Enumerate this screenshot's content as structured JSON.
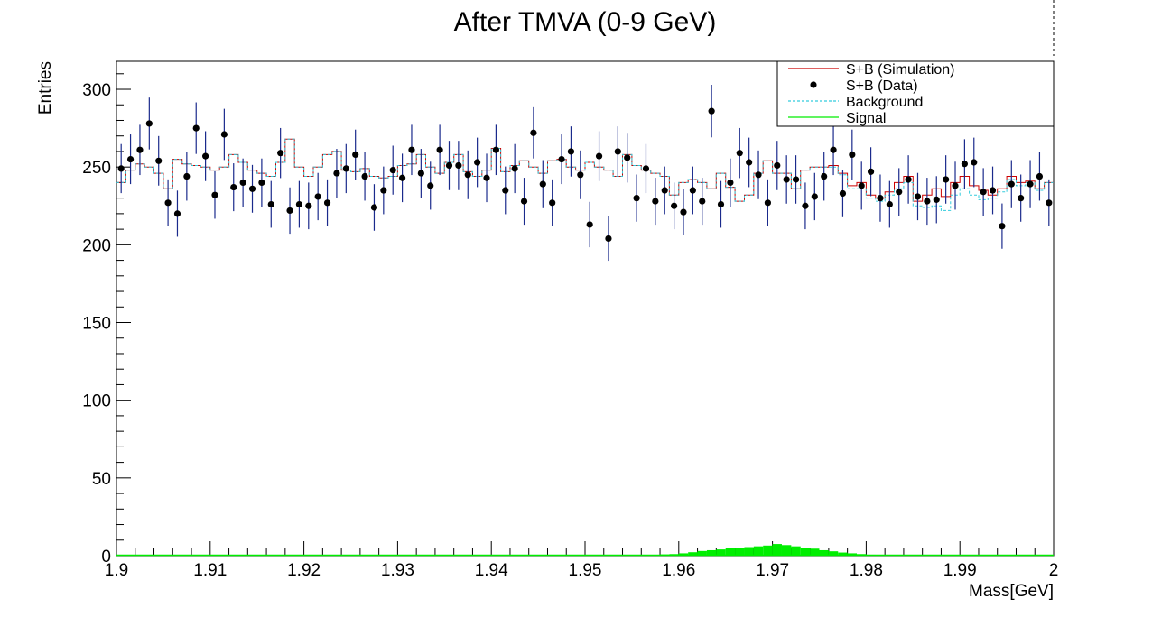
{
  "chart_data": {
    "type": "histogram",
    "title": "After TMVA (0-9 GeV)",
    "xlabel": "Mass[GeV]",
    "ylabel": "Entries",
    "xlim": [
      1.9,
      2.0
    ],
    "ylim": [
      0,
      318
    ],
    "bin_width": 0.001,
    "x_tick_labels": [
      "1.9",
      "1.91",
      "1.92",
      "1.93",
      "1.94",
      "1.95",
      "1.96",
      "1.97",
      "1.98",
      "1.99",
      "2"
    ],
    "y_tick_labels": [
      "0",
      "50",
      "100",
      "150",
      "200",
      "250",
      "300"
    ],
    "legend_position": "top-right",
    "series": [
      {
        "name": "S+B (Simulation)",
        "kind": "step",
        "color": "#cc0000",
        "values": [
          240,
          248,
          252,
          250,
          246,
          236,
          255,
          252,
          251,
          250,
          248,
          250,
          258,
          253,
          248,
          246,
          244,
          253,
          268,
          250,
          244,
          250,
          258,
          260,
          248,
          247,
          249,
          244,
          243,
          244,
          251,
          252,
          258,
          250,
          246,
          253,
          258,
          247,
          244,
          248,
          262,
          247,
          251,
          254,
          250,
          246,
          254,
          255,
          250,
          248,
          253,
          250,
          248,
          244,
          258,
          251,
          248,
          246,
          244,
          232,
          240,
          242,
          240,
          236,
          246,
          237,
          228,
          232,
          246,
          254,
          246,
          246,
          236,
          248,
          250,
          250,
          251,
          246,
          238,
          240,
          232,
          230,
          234,
          240,
          244,
          228,
          232,
          236,
          231,
          240,
          244,
          238,
          235,
          232,
          236,
          244,
          240,
          241,
          236,
          240
        ]
      },
      {
        "name": "S+B (Data)",
        "kind": "points",
        "color": "#000000",
        "x": [
          1.9005,
          1.9015,
          1.9025,
          1.9035,
          1.9045,
          1.9055,
          1.9065,
          1.9075,
          1.9085,
          1.9095,
          1.9105,
          1.9115,
          1.9125,
          1.9135,
          1.9145,
          1.9155,
          1.9165,
          1.9175,
          1.9185,
          1.9195,
          1.9205,
          1.9215,
          1.9225,
          1.9235,
          1.9245,
          1.9255,
          1.9265,
          1.9275,
          1.9285,
          1.9295,
          1.9305,
          1.9315,
          1.9325,
          1.9335,
          1.9345,
          1.9355,
          1.9365,
          1.9375,
          1.9385,
          1.9395,
          1.9405,
          1.9415,
          1.9425,
          1.9435,
          1.9445,
          1.9455,
          1.9465,
          1.9475,
          1.9485,
          1.9495,
          1.9505,
          1.9515,
          1.9525,
          1.9535,
          1.9545,
          1.9555,
          1.9565,
          1.9575,
          1.9585,
          1.9595,
          1.9605,
          1.9615,
          1.9625,
          1.9635,
          1.9645,
          1.9655,
          1.9665,
          1.9675,
          1.9685,
          1.9695,
          1.9705,
          1.9715,
          1.9725,
          1.9735,
          1.9745,
          1.9755,
          1.9765,
          1.9775,
          1.9785,
          1.9795,
          1.9805,
          1.9815,
          1.9825,
          1.9835,
          1.9845,
          1.9855,
          1.9865,
          1.9875,
          1.9885,
          1.9895,
          1.9905,
          1.9915,
          1.9925,
          1.9935,
          1.9945,
          1.9955,
          1.9965,
          1.9975,
          1.9985,
          1.9995
        ],
        "y": [
          249,
          255,
          261,
          278,
          254,
          227,
          220,
          244,
          275,
          257,
          232,
          271,
          237,
          240,
          236,
          240,
          226,
          259,
          222,
          226,
          225,
          231,
          227,
          246,
          249,
          258,
          244,
          224,
          235,
          248,
          243,
          261,
          246,
          238,
          261,
          251,
          251,
          245,
          253,
          243,
          261,
          235,
          249,
          228,
          272,
          239,
          227,
          255,
          260,
          245,
          213,
          257,
          204,
          260,
          256,
          230,
          249,
          228,
          235,
          225,
          221,
          235,
          228,
          286,
          226,
          240,
          259,
          253,
          245,
          227,
          251,
          242,
          242,
          225,
          231,
          244,
          261,
          233,
          258,
          238,
          247,
          230,
          226,
          234,
          242,
          231,
          228,
          229,
          242,
          238,
          252,
          253,
          234,
          235,
          212,
          239,
          230,
          239,
          244,
          227
        ]
      },
      {
        "name": "Background",
        "kind": "step-dashed",
        "color": "#33ccdd",
        "values": [
          240,
          248,
          252,
          250,
          246,
          236,
          255,
          252,
          251,
          250,
          248,
          250,
          258,
          253,
          248,
          246,
          244,
          253,
          268,
          250,
          244,
          250,
          258,
          260,
          248,
          247,
          249,
          244,
          243,
          244,
          251,
          252,
          258,
          250,
          246,
          253,
          258,
          247,
          244,
          248,
          262,
          247,
          251,
          254,
          250,
          246,
          254,
          255,
          250,
          248,
          253,
          250,
          248,
          244,
          258,
          251,
          248,
          246,
          244,
          232,
          240,
          242,
          240,
          236,
          246,
          237,
          228,
          232,
          246,
          254,
          246,
          246,
          236,
          248,
          250,
          250,
          250,
          245,
          236,
          236,
          230,
          228,
          232,
          236,
          240,
          225,
          224,
          225,
          222,
          232,
          236,
          232,
          229,
          230,
          234,
          242,
          238,
          240,
          235,
          240
        ]
      },
      {
        "name": "Signal",
        "kind": "filled-step",
        "color": "#00ee00",
        "values": [
          0,
          0,
          0,
          0,
          0,
          0,
          0,
          0.4,
          0,
          0,
          0,
          0,
          0,
          0,
          0,
          0,
          0,
          0,
          0,
          0,
          0,
          0,
          0,
          0,
          0,
          0,
          0,
          0,
          0,
          0,
          0,
          0,
          0,
          0,
          0,
          0,
          0,
          0,
          0,
          0,
          0,
          0,
          0,
          0,
          0,
          0,
          0,
          0,
          0,
          0,
          0,
          0,
          0,
          0,
          0,
          0,
          0.3,
          0.5,
          0.8,
          1,
          1.5,
          2.2,
          3,
          3.5,
          4,
          4.8,
          5,
          5.5,
          6,
          6.5,
          7.5,
          6.8,
          6,
          5,
          4.5,
          3.5,
          2.8,
          2,
          1.5,
          1,
          0.6,
          0.4,
          0.3,
          0,
          0,
          0,
          0,
          0,
          0,
          0,
          0,
          0,
          0,
          0,
          0,
          0,
          0,
          0,
          0,
          0
        ]
      }
    ]
  }
}
